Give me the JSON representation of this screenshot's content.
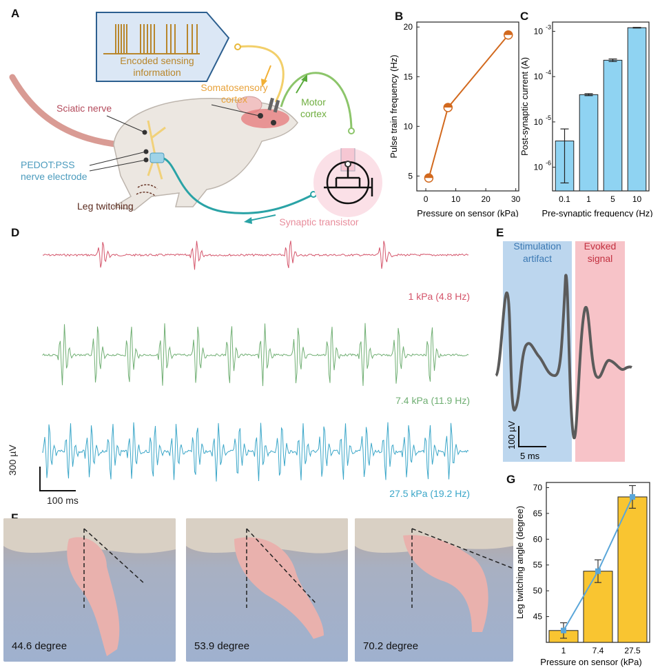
{
  "panels": {
    "A": "A",
    "B": "B",
    "C": "C",
    "D": "D",
    "E": "E",
    "F": "F",
    "G": "G"
  },
  "panel_a": {
    "encoded_label_1": "Encoded sensing",
    "encoded_label_2": "information",
    "somatosensory_1": "Somatosensory",
    "somatosensory_2": "cortex",
    "motor_1": "Motor",
    "motor_2": "cortex",
    "sciatic": "Sciatic nerve",
    "pedot_1": "PEDOT:PSS",
    "pedot_2": "nerve electrode",
    "leg_twitching": "Leg twitching",
    "synaptic": "Synaptic transistor",
    "colors": {
      "orange": "#e8a23a",
      "green": "#7bbf5a",
      "teal": "#2aa3a6",
      "pink": "#e88d9c"
    }
  },
  "panel_d": {
    "scale_v": "300 µV",
    "scale_t": "100 ms",
    "traces": [
      {
        "label": "1 kPa (4.8 Hz)",
        "color": "#d4546a"
      },
      {
        "label": "7.4 kPa (11.9 Hz)",
        "color": "#6fae72"
      },
      {
        "label": "27.5 kPa (19.2 Hz)",
        "color": "#3aa6c8"
      }
    ]
  },
  "panel_e": {
    "stim_1": "Stimulation",
    "stim_2": "artifact",
    "evoked_1": "Evoked",
    "evoked_2": "signal",
    "scale_v": "100 µV",
    "scale_t": "5 ms"
  },
  "panel_f": {
    "photos": [
      {
        "caption": "44.6 degree"
      },
      {
        "caption": "53.9 degree"
      },
      {
        "caption": "70.2 degree"
      }
    ]
  },
  "chart_data": [
    {
      "id": "B",
      "type": "line",
      "xlabel": "Pressure on sensor (kPa)",
      "ylabel": "Pulse train frequency (Hz)",
      "x": [
        1,
        7.4,
        27.5
      ],
      "y": [
        4.8,
        11.9,
        19.2
      ],
      "xlim": [
        -3,
        31
      ],
      "ylim": [
        3.5,
        20.5
      ],
      "xticks": [
        "0",
        "10",
        "20",
        "30"
      ],
      "yticks": [
        "5",
        "10",
        "15",
        "20"
      ],
      "color": "#d2691e"
    },
    {
      "id": "C",
      "type": "bar",
      "xlabel": "Pre-synaptic frequency (Hz)",
      "ylabel": "Post-synaptic current (A)",
      "categories": [
        "0.1",
        "1",
        "5",
        "10"
      ],
      "values": [
        3.8e-06,
        4e-05,
        0.00023,
        0.0012
      ],
      "err_low": [
        4.5e-07,
        3.8e-05,
        0.000215,
        0.00118
      ],
      "err_high": [
        7e-06,
        4.2e-05,
        0.000245,
        0.00122
      ],
      "ylim": [
        3e-07,
        0.0016
      ],
      "yscale": "log",
      "ytick_base": [
        "10",
        "10",
        "10",
        "10"
      ],
      "ytick_exp": [
        "-6",
        "-5",
        "-4",
        "-3"
      ],
      "color": "#8fd3f2"
    },
    {
      "id": "G",
      "type": "bar",
      "xlabel": "Pressure on sensor (kPa)",
      "ylabel": "Leg twitching angle (degree)",
      "categories": [
        "1",
        "7.4",
        "27.5"
      ],
      "values": [
        42.3,
        53.8,
        68.2
      ],
      "errors": [
        1.5,
        2.2,
        2.2
      ],
      "ylim": [
        40,
        71
      ],
      "yticks": [
        "45",
        "50",
        "55",
        "60",
        "65",
        "70"
      ],
      "bar_color": "#f9c531",
      "line_color": "#5aa6d9"
    }
  ]
}
